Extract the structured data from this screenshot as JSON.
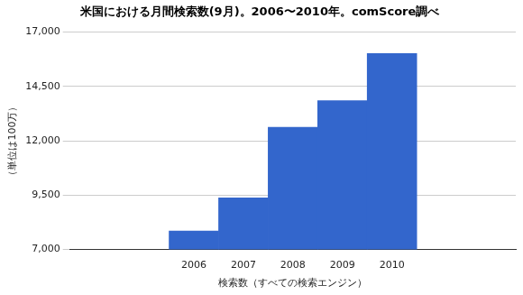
{
  "chart_data": {
    "type": "bar",
    "title": "米国における月間検索数(9月)。2006〜2010年。comScore調べ",
    "x_label": "検索数（すべての検索エンジン）",
    "y_label": "（単位は100万）",
    "categories": [
      null,
      null,
      "2006",
      "2007",
      "2008",
      "2009",
      "2010",
      null,
      null
    ],
    "values": [
      null,
      null,
      7850,
      9380,
      12620,
      13850,
      16020,
      null,
      null
    ],
    "color": "#3366cc",
    "ylim": [
      7000,
      17000
    ],
    "yticks": [
      {
        "value": 7000,
        "label": "7,000"
      },
      {
        "value": 9500,
        "label": "9,500"
      },
      {
        "value": 12000,
        "label": "12,000"
      },
      {
        "value": 14500,
        "label": "14,500"
      },
      {
        "value": 17000,
        "label": "17,000"
      }
    ],
    "grid": true
  }
}
